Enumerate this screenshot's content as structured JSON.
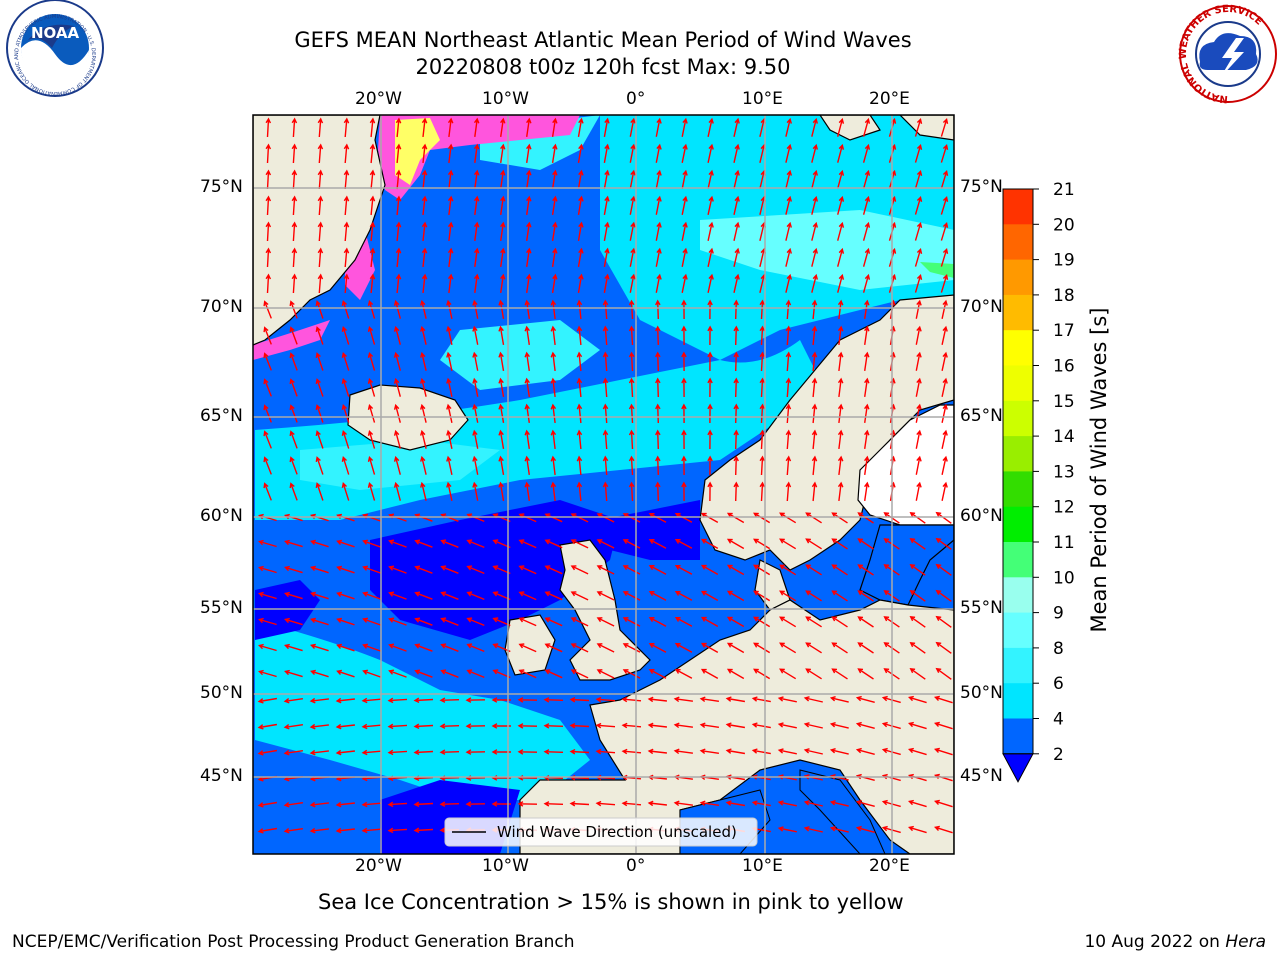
{
  "title": "GEFS MEAN Northeast Atlantic Mean Period of Wind Waves",
  "subtitle": "20220808 t00z 120h fcst   Max: 9.50",
  "logos": {
    "noaa": {
      "text": "NOAA",
      "ring_text": "NATIONAL OCEANIC AND ATMOSPHERIC ADMINISTRATION · U.S. DEPARTMENT OF COMMERCE",
      "icon": "noaa-logo"
    },
    "nws": {
      "ring_text": "NATIONAL WEATHER SERVICE",
      "icon": "nws-logo"
    }
  },
  "map": {
    "lon_labels": [
      "20°W",
      "10°W",
      "0°",
      "10°E",
      "20°E"
    ],
    "lat_labels": [
      "75°N",
      "70°N",
      "65°N",
      "60°N",
      "55°N",
      "50°N",
      "45°N"
    ],
    "legend_label": "Wind Wave Direction (unscaled)",
    "land_color": "#eeecdc",
    "arrow_color": "#ff0000"
  },
  "colorbar": {
    "label": "Mean Period of Wind Waves [s]",
    "ticks": [
      "2",
      "4",
      "6",
      "8",
      "9",
      "10",
      "11",
      "12",
      "13",
      "14",
      "15",
      "16",
      "17",
      "18",
      "19",
      "20",
      "21"
    ],
    "colors": [
      "#0066ff",
      "#00e5ff",
      "#33f3ff",
      "#66ffff",
      "#99ffee",
      "#44ff77",
      "#00ee00",
      "#33dd00",
      "#99ee00",
      "#ccff00",
      "#eeff00",
      "#ffff00",
      "#ffbb00",
      "#ff9900",
      "#ff6600",
      "#ff3300",
      "#ff0000"
    ],
    "under_color": "#0000ff"
  },
  "note": "Sea Ice Concentration > 15% is shown in pink to yellow",
  "credit": "NCEP/EMC/Verification Post Processing Product Generation Branch",
  "run_date": "10 Aug 2022 on",
  "host": "Hera"
}
